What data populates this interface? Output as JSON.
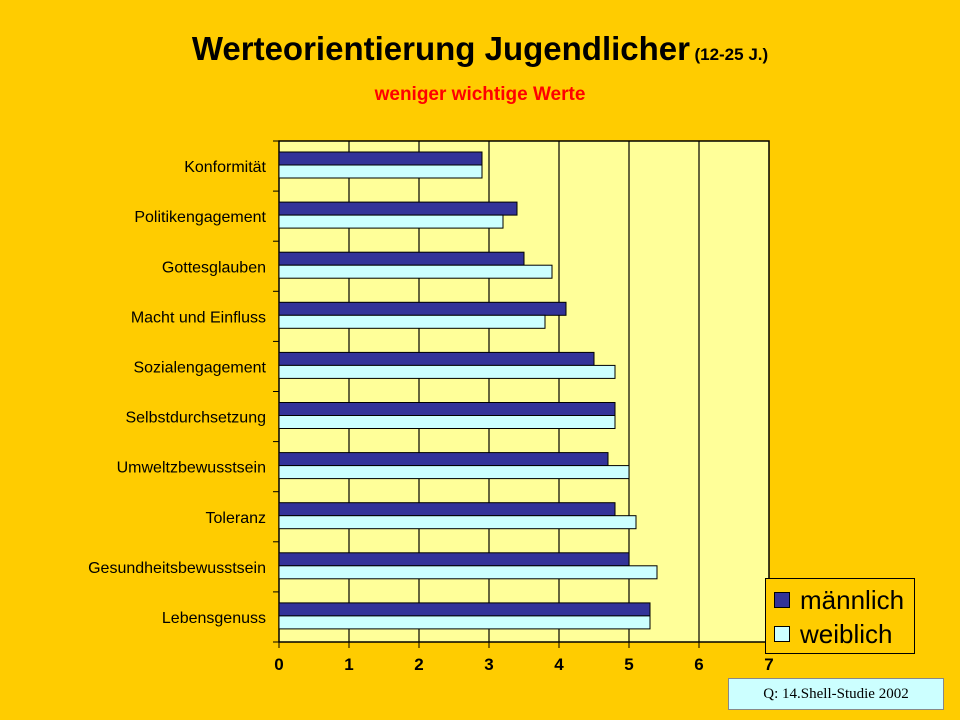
{
  "chart_data": {
    "type": "bar",
    "orientation": "horizontal",
    "title": "Werteorientierung Jugendlicher",
    "title_suffix": "(12-25 J.)",
    "subtitle": "weniger wichtige Werte",
    "categories": [
      "Konformität",
      "Politikengagement",
      "Gottesglauben",
      "Macht und Einfluss",
      "Sozialengagement",
      "Selbstdurchsetzung",
      "Umweltzbewusstsein",
      "Toleranz",
      "Gesundheitsbewusstsein",
      "Lebensgenuss"
    ],
    "series": [
      {
        "name": "männlich",
        "color": "#333399",
        "values": [
          2.9,
          3.4,
          3.5,
          4.1,
          4.5,
          4.8,
          4.7,
          4.8,
          5.0,
          5.3
        ]
      },
      {
        "name": "weiblich",
        "color": "#CCFFFF",
        "values": [
          2.9,
          3.2,
          3.9,
          3.8,
          4.8,
          4.8,
          5.0,
          5.1,
          5.4,
          5.3
        ]
      }
    ],
    "xlim": [
      0,
      7
    ],
    "xticks": [
      "0",
      "1",
      "2",
      "3",
      "4",
      "5",
      "6",
      "7"
    ],
    "grid": true,
    "plot_background": "#FFFF99",
    "legend_position": "bottom-right"
  },
  "source_note": "Q: 14.Shell-Studie 2002",
  "colors": {
    "background": "#FFCC00",
    "subtitle": "#FF0000"
  }
}
